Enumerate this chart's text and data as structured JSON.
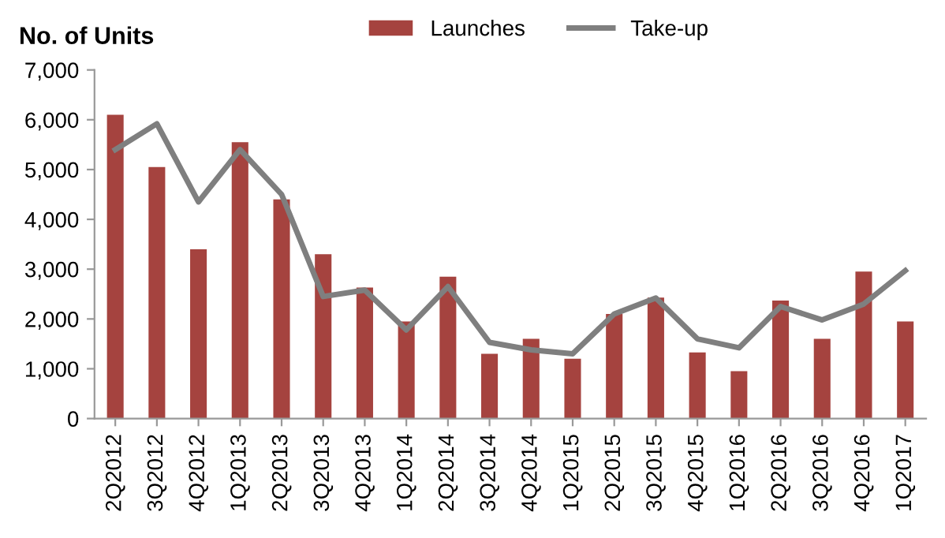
{
  "chart_data": {
    "type": "bar",
    "ylabel": "No. of Units",
    "categories": [
      "2Q2012",
      "3Q2012",
      "4Q2012",
      "1Q2013",
      "2Q2013",
      "3Q2013",
      "4Q2013",
      "1Q2014",
      "2Q2014",
      "3Q2014",
      "4Q2014",
      "1Q2015",
      "2Q2015",
      "3Q2015",
      "4Q2015",
      "1Q2016",
      "2Q2016",
      "3Q2016",
      "4Q2016",
      "1Q2017"
    ],
    "series": [
      {
        "name": "Launches",
        "color": "#a5433f",
        "values": [
          6100,
          5050,
          3400,
          5550,
          4400,
          3300,
          2630,
          1950,
          2850,
          1300,
          1600,
          1200,
          2100,
          2430,
          1330,
          950,
          2370,
          1600,
          2950,
          1950
        ]
      },
      {
        "name": "Take-up",
        "type": "line",
        "color": "#7f7f7f",
        "values": [
          5400,
          5920,
          4350,
          5400,
          4500,
          2450,
          2580,
          1780,
          2650,
          1530,
          1380,
          1300,
          2100,
          2420,
          1600,
          1420,
          2250,
          1980,
          2300,
          2970
        ]
      }
    ],
    "ylim": [
      0,
      7000
    ],
    "yticks": [
      {
        "value": 0,
        "label": "0"
      },
      {
        "value": 1000,
        "label": "1,000"
      },
      {
        "value": 2000,
        "label": "2,000"
      },
      {
        "value": 3000,
        "label": "3,000"
      },
      {
        "value": 4000,
        "label": "4,000"
      },
      {
        "value": 5000,
        "label": "5,000"
      },
      {
        "value": 6000,
        "label": "6,000"
      },
      {
        "value": 7000,
        "label": "7,000"
      }
    ],
    "grid": false,
    "legend": "top",
    "marker": "none",
    "line_style": "solid"
  }
}
